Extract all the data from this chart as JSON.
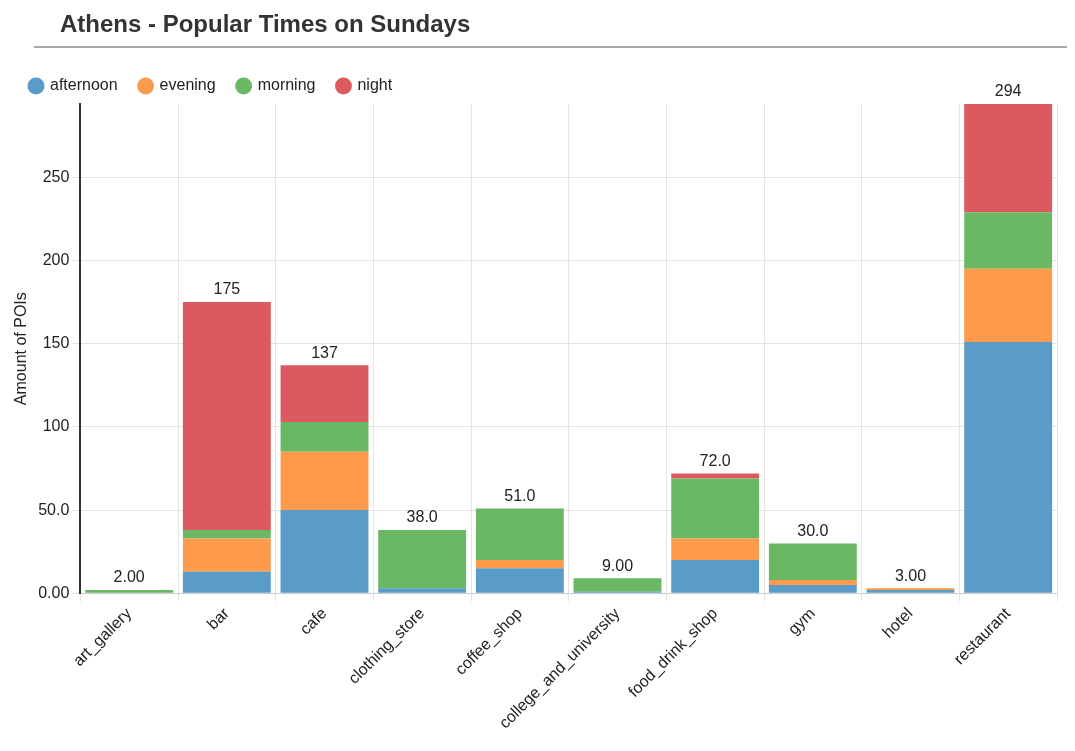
{
  "chart_data": {
    "type": "bar",
    "title": "Athens - Popular Times on Sundays",
    "ylabel": "Amount of POIs",
    "categories": [
      "art_gallery",
      "bar",
      "cafe",
      "clothing_store",
      "coffee_shop",
      "college_and_university",
      "food_drink_shop",
      "gym",
      "hotel",
      "restaurant"
    ],
    "series": [
      {
        "name": "afternoon",
        "color": "#5b9bc8",
        "values": [
          0,
          13,
          50,
          3,
          15,
          1,
          20,
          5,
          2,
          151
        ]
      },
      {
        "name": "evening",
        "color": "#fd9a4b",
        "values": [
          0,
          20,
          35,
          0,
          5,
          0,
          13,
          3,
          1,
          44
        ]
      },
      {
        "name": "morning",
        "color": "#6ab764",
        "values": [
          2,
          5,
          18,
          35,
          31,
          8,
          36,
          22,
          0,
          34
        ]
      },
      {
        "name": "night",
        "color": "#dc5a5f",
        "values": [
          0,
          137,
          34,
          0,
          0,
          0,
          3,
          0,
          0,
          65
        ]
      }
    ],
    "stacked": true,
    "totals": [
      "2.00",
      "175",
      "137",
      "38.0",
      "51.0",
      "9.00",
      "72.0",
      "30.0",
      "3.00",
      "294"
    ],
    "ylim": [
      0,
      294
    ],
    "yticks": [
      {
        "value": 0,
        "label": "0.00"
      },
      {
        "value": 50,
        "label": "50.0"
      },
      100,
      150,
      200,
      250
    ],
    "grid": true,
    "legend": "top left"
  }
}
